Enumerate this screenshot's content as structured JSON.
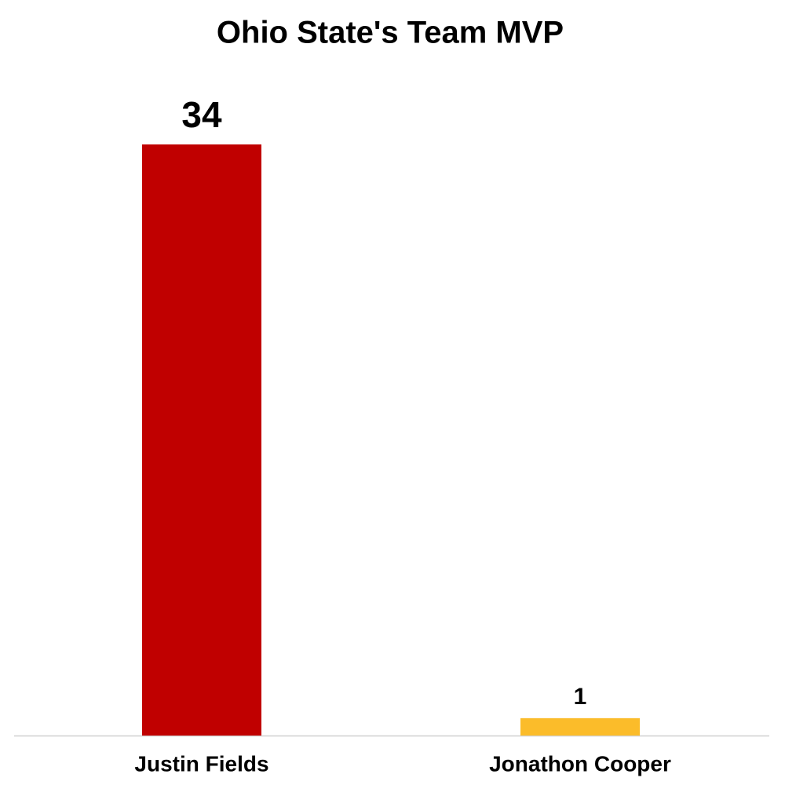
{
  "chart_data": {
    "type": "bar",
    "title": "Ohio State's Team MVP",
    "categories": [
      "Justin Fields",
      "Jonathon Cooper"
    ],
    "values": [
      34,
      1
    ],
    "colors": [
      "#c00000",
      "#fbbc2a"
    ]
  }
}
